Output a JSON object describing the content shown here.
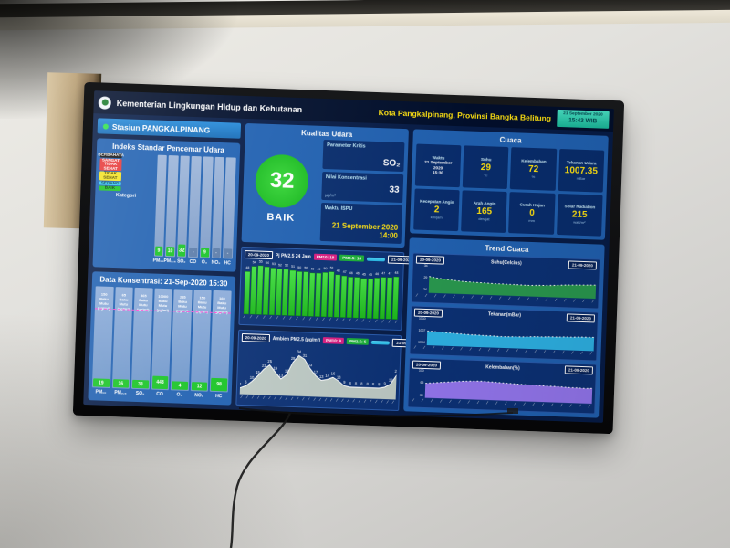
{
  "header": {
    "ministry": "Kementerian Lingkungan Hidup dan Kehutanan",
    "location": "Kota Pangkalpinang, Provinsi Bangka Belitung",
    "datetime_line1": "21 September 2020",
    "datetime_line2": "15:43 WIB"
  },
  "station": {
    "label": "Stasiun PANGKALPINANG"
  },
  "ispu": {
    "title": "Indeks Standar Pencemar Udara",
    "kategori_label": "Kategori",
    "categories": [
      {
        "label": "BERBAHAYA",
        "color": "#141414",
        "text": "#ffffff"
      },
      {
        "label": "SANGAT TIDAK SEHAT",
        "color": "#e23b3b",
        "text": "#ffffff"
      },
      {
        "label": "TIDAK SEHAT",
        "color": "#f3e32c",
        "text": "#4a4500"
      },
      {
        "label": "SEDANG",
        "color": "#3cc8f0",
        "text": "#063b52"
      },
      {
        "label": "BAIK",
        "color": "#23c32b",
        "text": "#063f0c"
      }
    ],
    "pollutants": [
      {
        "label": "PM₁₀",
        "value": "9",
        "has_value": true
      },
      {
        "label": "PM₂.₅",
        "value": "10",
        "has_value": true
      },
      {
        "label": "SO₂",
        "value": "32",
        "has_value": true,
        "highlight": true
      },
      {
        "label": "CO",
        "value": "-",
        "has_value": false
      },
      {
        "label": "O₃",
        "value": "9",
        "has_value": true
      },
      {
        "label": "NO₂",
        "value": "-",
        "has_value": false
      },
      {
        "label": "HC",
        "value": "-",
        "has_value": false
      }
    ]
  },
  "konsentrasi": {
    "title": "Data Konsentrasi: 21-Sep-2020 15:30",
    "baku_caption": [
      "Baku",
      "Mutu",
      "(µg/m³)"
    ],
    "columns": [
      {
        "label": "PM₁₀",
        "baku": "150",
        "value": "19",
        "tall": false
      },
      {
        "label": "PM₂.₅",
        "baku": "65",
        "value": "16",
        "tall": false
      },
      {
        "label": "SO₂",
        "baku": "365",
        "value": "33",
        "tall": false
      },
      {
        "label": "CO",
        "baku": "10000",
        "value": "448",
        "tall": true
      },
      {
        "label": "O₃",
        "baku": "235",
        "value": "4",
        "tall": false
      },
      {
        "label": "NO₂",
        "baku": "150",
        "value": "12",
        "tall": false
      },
      {
        "label": "HC",
        "baku": "160",
        "value": "98",
        "tall": true
      }
    ]
  },
  "kualitas": {
    "title": "Kualitas Udara",
    "index_value": "32",
    "index_category": "BAIK",
    "fields": [
      {
        "label": "Parameter Kritis",
        "value": "SO₂"
      },
      {
        "label": "Nilai Konsentrasi",
        "value": "33",
        "unit": "µg/m³"
      },
      {
        "label": "Waktu ISPU",
        "value": "21 September 2020",
        "value2": "14:00"
      }
    ]
  },
  "cuaca": {
    "title": "Cuaca",
    "cells": [
      {
        "label": "Waktu",
        "text": [
          "21 September",
          "2020",
          "15:30"
        ]
      },
      {
        "label": "Suhu",
        "value": "29",
        "unit": "°C"
      },
      {
        "label": "Kelembaban",
        "value": "72",
        "unit": "%"
      },
      {
        "label": "Tekanan Udara",
        "value": "1007.35",
        "unit": "mBar"
      },
      {
        "label": "Kecepatan Angin",
        "value": "2",
        "unit": "km/jam"
      },
      {
        "label": "Arah Angin",
        "value": "165",
        "unit": "derajat"
      },
      {
        "label": "Curah Hujan",
        "value": "0",
        "unit": "mm"
      },
      {
        "label": "Solar Radiation",
        "value": "215",
        "unit": "watt/m²"
      }
    ]
  },
  "trend": {
    "title": "Trend Cuaca",
    "charts": [
      {
        "title": "Suhu(Celcius)",
        "badge_left": "20-09-2020",
        "badge_right": "21-09-2020",
        "color": "#2f9e4f",
        "ylim": [
          24,
          34
        ],
        "yticks": [
          "34",
          "29",
          "24"
        ],
        "values": [
          30.5,
          30,
          29.6,
          29.3,
          29,
          28.8,
          28.7,
          28.6,
          28.5,
          28.4,
          28.4,
          28.3,
          28.3,
          28.2,
          28.2,
          28.3,
          28.4,
          28.5,
          28.7,
          28.9,
          29,
          29.1,
          29.2,
          29.3
        ]
      },
      {
        "title": "Tekanan(mBar)",
        "badge_left": "20-09-2020",
        "badge_right": "21-09-2020",
        "color": "#35b8e8",
        "ylim": [
          1004,
          1010
        ],
        "yticks": [
          "1010",
          "1007",
          "1004"
        ],
        "values": [
          1007.5,
          1007.4,
          1007.3,
          1007.2,
          1007.1,
          1007.0,
          1006.9,
          1006.9,
          1006.8,
          1006.8,
          1006.7,
          1006.7,
          1006.8,
          1006.8,
          1006.9,
          1007.0,
          1007.0,
          1007.1,
          1007.1,
          1007.2,
          1007.2,
          1007.3,
          1007.3,
          1007.35
        ]
      },
      {
        "title": "Kelembaban(%)",
        "badge_left": "20-09-2020",
        "badge_right": "21-09-2020",
        "color": "#9b7bf0",
        "ylim": [
          30,
          100
        ],
        "yticks": [
          "100",
          "65",
          "30"
        ],
        "values": [
          70,
          72,
          74,
          76,
          78,
          80,
          81,
          82,
          82,
          81,
          80,
          79,
          78,
          77,
          76,
          76,
          75,
          74,
          74,
          73,
          72,
          72,
          71,
          72
        ]
      }
    ]
  },
  "charts": {
    "pj": {
      "badge_left": "20-09-2020",
      "badge_right": "21-09-2020",
      "title": "Pj PM2.5 24 Jam",
      "legend": [
        {
          "label": "PM10: 19",
          "color": "#d5207f"
        },
        {
          "label": "PM2.5: 16",
          "color": "#1fae3a"
        }
      ],
      "ylim": [
        0,
        60
      ],
      "values": [
        48,
        54,
        55,
        54,
        53,
        52,
        52,
        51,
        50,
        50,
        49,
        49,
        50,
        51,
        48,
        47,
        46,
        46,
        45,
        45,
        46,
        47,
        47,
        48
      ]
    },
    "ambien": {
      "badge_left": "20-09-2020",
      "badge_right": "21-09-2020",
      "title": "Ambien PM2.5 (µg/m³)",
      "legend": [
        {
          "label": "PM10: 9",
          "color": "#d5207f"
        },
        {
          "label": "PM2.5: 5",
          "color": "#1fae3a"
        }
      ],
      "ylim": [
        0,
        40
      ],
      "values": [
        4,
        6,
        10,
        15,
        21,
        25,
        19,
        13,
        17,
        28,
        34,
        31,
        23,
        17,
        13,
        14,
        16,
        13,
        9,
        8,
        8,
        8,
        8,
        8,
        8,
        9,
        12,
        20
      ]
    }
  }
}
